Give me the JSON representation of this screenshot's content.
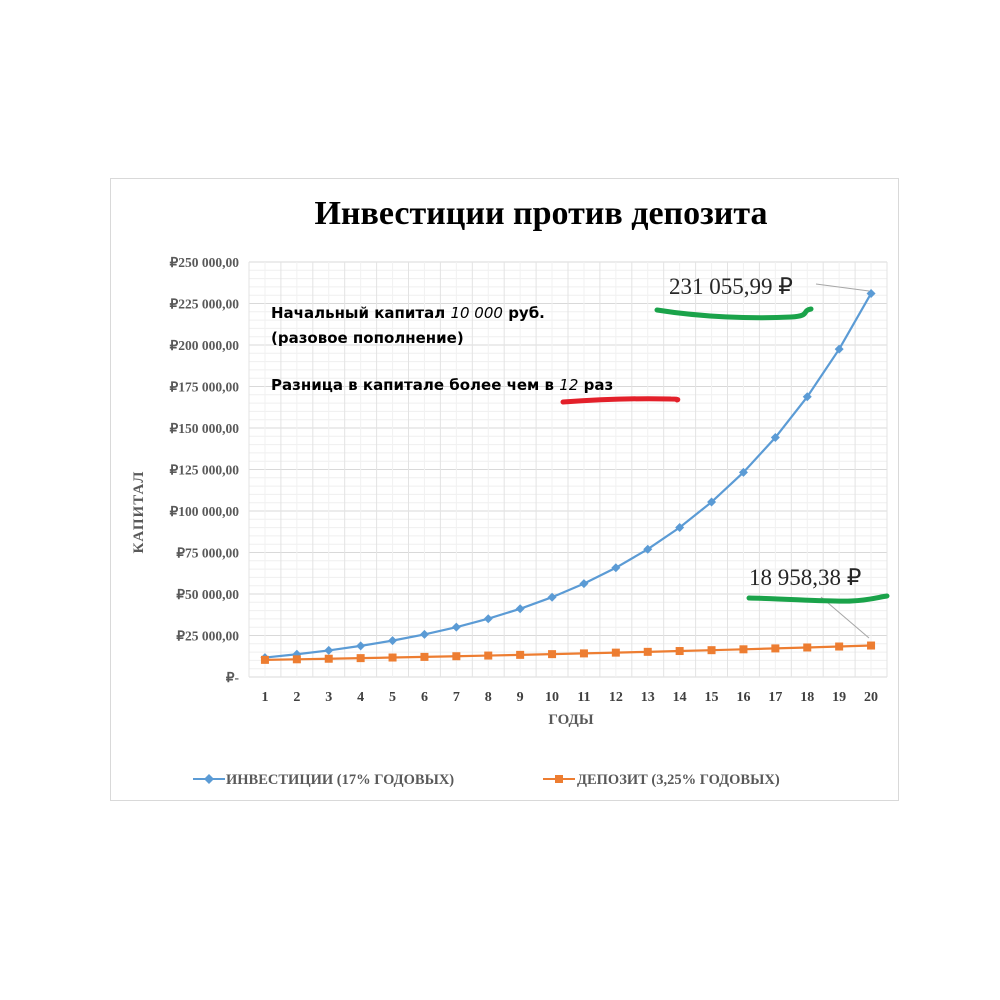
{
  "chart_data": {
    "type": "line",
    "title": "Инвестиции против депозита",
    "xlabel": "ГОДЫ",
    "ylabel": "КАПИТАЛ",
    "categories": [
      "1",
      "2",
      "3",
      "4",
      "5",
      "6",
      "7",
      "8",
      "9",
      "10",
      "11",
      "12",
      "13",
      "14",
      "15",
      "16",
      "17",
      "18",
      "19",
      "20"
    ],
    "y_ticks": [
      "₽-",
      "₽25 000,00",
      "₽50 000,00",
      "₽75 000,00",
      "₽100 000,00",
      "₽125 000,00",
      "₽150 000,00",
      "₽175 000,00",
      "₽200 000,00",
      "₽225 000,00",
      "₽250 000,00"
    ],
    "ylim": [
      0,
      250000
    ],
    "grid": true,
    "legend_position": "bottom",
    "series": [
      {
        "name": "ИНВЕСТИЦИИ (17% ГОДОВЫХ)",
        "color": "#5b9bd5",
        "marker": "diamond",
        "values": [
          11700,
          13689,
          16016,
          18739,
          21924,
          25652,
          30012,
          35115,
          41084,
          48068,
          56240,
          65801,
          76987,
          90075,
          105387,
          123303,
          144266,
          168791,
          197485,
          231056
        ]
      },
      {
        "name": "ДЕПОЗИТ (3,25% ГОДОВЫХ)",
        "color": "#ed7d31",
        "marker": "square",
        "values": [
          10325,
          10661,
          11007,
          11365,
          11734,
          12116,
          12510,
          12916,
          13336,
          13769,
          14217,
          14679,
          15156,
          15649,
          16157,
          16682,
          17224,
          17784,
          18362,
          18958
        ]
      }
    ],
    "annotations": {
      "invest_final": "231 055,99 ₽",
      "deposit_final": "18 958,38 ₽",
      "note_line1_prefix": "Начальный капитал",
      "note_line1_amount": "10 000",
      "note_line1_suffix": "руб.",
      "note_line2": "(разовое пополнение)",
      "note_line3_prefix": "Разница в капитале более чем в",
      "note_line3_amount": "12",
      "note_line3_suffix": "раз"
    },
    "highlight_colors": {
      "green": "#1aa34a",
      "red": "#e3202a"
    }
  }
}
